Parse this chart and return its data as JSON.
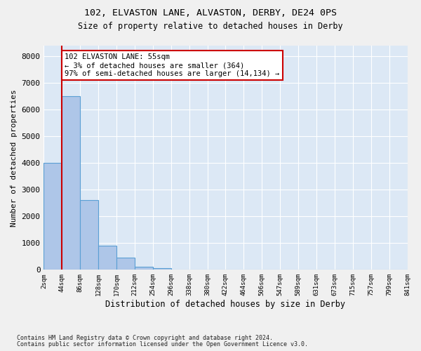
{
  "title1": "102, ELVASTON LANE, ALVASTON, DERBY, DE24 0PS",
  "title2": "Size of property relative to detached houses in Derby",
  "xlabel": "Distribution of detached houses by size in Derby",
  "ylabel": "Number of detached properties",
  "bin_labels": [
    "2sqm",
    "44sqm",
    "86sqm",
    "128sqm",
    "170sqm",
    "212sqm",
    "254sqm",
    "296sqm",
    "338sqm",
    "380sqm",
    "422sqm",
    "464sqm",
    "506sqm",
    "547sqm",
    "589sqm",
    "631sqm",
    "673sqm",
    "715sqm",
    "757sqm",
    "799sqm",
    "841sqm"
  ],
  "bar_heights": [
    4000,
    6500,
    2600,
    900,
    450,
    120,
    50,
    20,
    5,
    0,
    0,
    0,
    0,
    0,
    0,
    0,
    0,
    0,
    0,
    0
  ],
  "bar_color": "#aec6e8",
  "bar_edge_color": "#5a9fd4",
  "property_line_x": 1.0,
  "property_line_color": "#cc0000",
  "annotation_box_color": "#ffffff",
  "annotation_box_edge": "#cc0000",
  "annotation_line1": "102 ELVASTON LANE: 55sqm",
  "annotation_line2": "← 3% of detached houses are smaller (364)",
  "annotation_line3": "97% of semi-detached houses are larger (14,134) →",
  "ylim": [
    0,
    8400
  ],
  "yticks": [
    0,
    1000,
    2000,
    3000,
    4000,
    5000,
    6000,
    7000,
    8000
  ],
  "bg_color": "#dce8f5",
  "fig_bg_color": "#f0f0f0",
  "footnote1": "Contains HM Land Registry data © Crown copyright and database right 2024.",
  "footnote2": "Contains public sector information licensed under the Open Government Licence v3.0."
}
